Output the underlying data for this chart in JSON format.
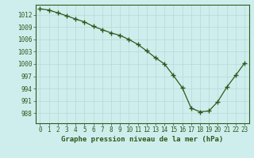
{
  "hours": [
    0,
    1,
    2,
    3,
    4,
    5,
    6,
    7,
    8,
    9,
    10,
    11,
    12,
    13,
    14,
    15,
    16,
    17,
    18,
    19,
    20,
    21,
    22,
    23
  ],
  "pressure": [
    1013.5,
    1013.2,
    1012.5,
    1011.8,
    1011.0,
    1010.3,
    1009.2,
    1008.4,
    1007.6,
    1007.0,
    1006.0,
    1004.8,
    1003.2,
    1001.5,
    1000.0,
    997.2,
    994.2,
    989.2,
    988.3,
    988.5,
    990.8,
    994.3,
    997.2,
    1000.2
  ],
  "line_color": "#2d5a1b",
  "marker": "+",
  "marker_size": 4,
  "marker_lw": 1.0,
  "bg_color": "#ceeeed",
  "grid_color": "#b8d8d8",
  "title": "Graphe pression niveau de la mer (hPa)",
  "title_color": "#2d5a1b",
  "tick_label_color": "#2d5a1b",
  "ylim": [
    985.5,
    1014.5
  ],
  "yticks": [
    988,
    991,
    994,
    997,
    1000,
    1003,
    1006,
    1009,
    1012
  ],
  "xlim": [
    -0.5,
    23.5
  ],
  "xticks": [
    0,
    1,
    2,
    3,
    4,
    5,
    6,
    7,
    8,
    9,
    10,
    11,
    12,
    13,
    14,
    15,
    16,
    17,
    18,
    19,
    20,
    21,
    22,
    23
  ],
  "tick_fontsize": 5.5,
  "title_fontsize": 6.5,
  "line_width": 0.9
}
